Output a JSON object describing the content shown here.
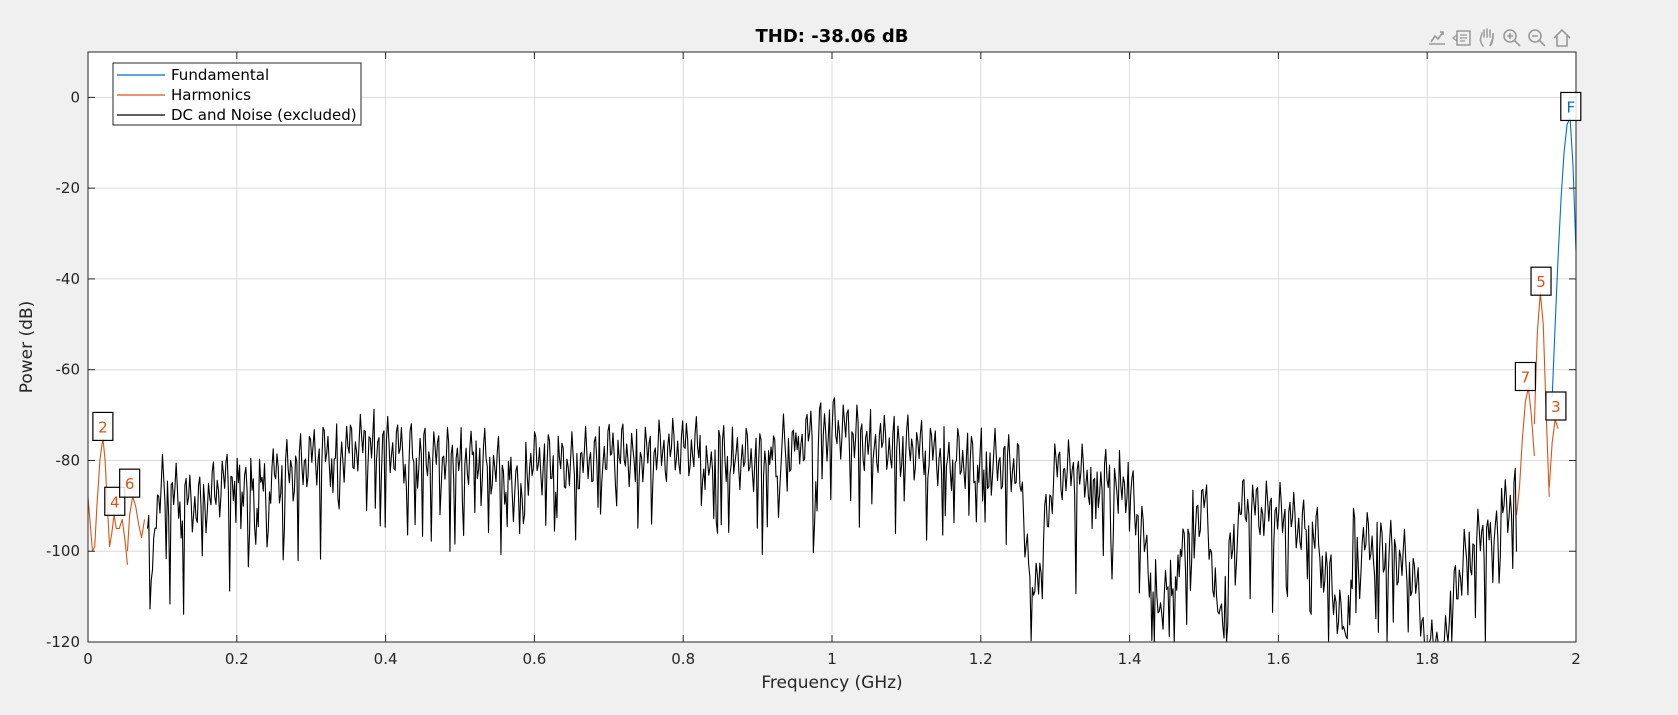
{
  "toolbar": {
    "icons": [
      "export-icon",
      "data-tips-icon",
      "pan-icon",
      "zoom-in-icon",
      "zoom-out-icon",
      "home-icon"
    ]
  },
  "chart_data": {
    "type": "line",
    "title": "THD: -38.06 dB",
    "xlabel": "Frequency (GHz)",
    "ylabel": "Power (dB)",
    "xlim": [
      0,
      2
    ],
    "ylim": [
      -120,
      10
    ],
    "xticks": [
      0,
      0.2,
      0.4,
      0.6,
      0.8,
      1,
      1.2,
      1.4,
      1.6,
      1.8,
      2
    ],
    "xtick_labels": [
      "0",
      "0.2",
      "0.4",
      "0.6",
      "0.8",
      "1",
      "1.2",
      "1.4",
      "1.6",
      "1.8",
      "2"
    ],
    "yticks": [
      -120,
      -100,
      -80,
      -60,
      -40,
      -20,
      0
    ],
    "ytick_labels": [
      "-120",
      "-100",
      "-80",
      "-60",
      "-40",
      "-20",
      "0"
    ],
    "grid": true,
    "legend_position": "top-left",
    "colors": {
      "fundamental": "#0072BD",
      "harmonics": "#D95319",
      "noise": "#000000"
    },
    "series": [
      {
        "name": "Fundamental",
        "color": "#0072BD",
        "x": [
          1.968,
          1.972,
          1.976,
          1.98,
          1.984,
          1.988,
          1.992,
          1.996,
          2.0
        ],
        "y": [
          -66,
          -50,
          -35,
          -22,
          -12,
          -6,
          -4.5,
          -15,
          -34
        ]
      },
      {
        "name": "Harmonics",
        "color": "#D95319",
        "segments": [
          {
            "x": [
              0.0,
              0.003,
              0.006,
              0.009,
              0.012,
              0.016,
              0.02,
              0.023,
              0.026,
              0.029,
              0.032,
              0.035
            ],
            "y": [
              -88,
              -94,
              -100,
              -99,
              -90,
              -80,
              -75,
              -80,
              -90,
              -99,
              -96,
              -92
            ]
          },
          {
            "x": [
              0.035,
              0.038,
              0.042,
              0.046,
              0.05,
              0.053
            ],
            "y": [
              -92,
              -95,
              -95,
              -93,
              -98,
              -103
            ]
          },
          {
            "x": [
              0.053,
              0.056,
              0.06,
              0.064,
              0.068,
              0.072,
              0.076
            ],
            "y": [
              -100,
              -92,
              -88,
              -90,
              -94,
              -97,
              -93
            ]
          },
          {
            "x": [
              1.92,
              1.924,
              1.928,
              1.932,
              1.936,
              1.94,
              1.944
            ],
            "y": [
              -92,
              -86,
              -75,
              -67,
              -64,
              -70,
              -79
            ]
          },
          {
            "x": [
              1.944,
              1.948,
              1.952,
              1.956,
              1.96,
              1.964
            ],
            "y": [
              -72,
              -52,
              -43,
              -50,
              -70,
              -88
            ]
          },
          {
            "x": [
              1.964,
              1.968,
              1.972,
              1.976
            ],
            "y": [
              -86,
              -76,
              -71,
              -73
            ]
          }
        ]
      },
      {
        "name": "DC and Noise (excluded)",
        "color": "#000000",
        "x": [
          0.08,
          0.086,
          0.09,
          0.1,
          0.12,
          0.15,
          0.18,
          0.2,
          0.24,
          0.28,
          0.3,
          0.34,
          0.38,
          0.4,
          0.45,
          0.5,
          0.52,
          0.56,
          0.6,
          0.65,
          0.7,
          0.75,
          0.8,
          0.85,
          0.9,
          0.95,
          0.98,
          1.0,
          1.05,
          1.1,
          1.15,
          1.2,
          1.25,
          1.27,
          1.3,
          1.35,
          1.4,
          1.44,
          1.5,
          1.52,
          1.55,
          1.6,
          1.65,
          1.69,
          1.7,
          1.75,
          1.78,
          1.8,
          1.82,
          1.85,
          1.88,
          1.9,
          1.92
        ],
        "y": [
          -95,
          -107,
          -90,
          -86,
          -88,
          -90,
          -85,
          -83,
          -84,
          -82,
          -79,
          -78,
          -76,
          -77,
          -79,
          -80,
          -78,
          -83,
          -80,
          -81,
          -78,
          -79,
          -77,
          -78,
          -80,
          -76,
          -74,
          -72,
          -76,
          -77,
          -79,
          -80,
          -81,
          -109,
          -82,
          -84,
          -85,
          -112,
          -88,
          -114,
          -90,
          -92,
          -96,
          -118,
          -97,
          -100,
          -104,
          -120,
          -120,
          -101,
          -96,
          -91,
          -88
        ]
      }
    ],
    "annotations": [
      {
        "label": "F",
        "x": 1.993,
        "y": -2,
        "color": "#0072BD"
      },
      {
        "label": "2",
        "x": 0.02,
        "y": -72.5,
        "color": "#D95319"
      },
      {
        "label": "3",
        "x": 1.973,
        "y": -68,
        "color": "#D95319"
      },
      {
        "label": "4",
        "x": 0.036,
        "y": -89,
        "color": "#D95319"
      },
      {
        "label": "5",
        "x": 1.953,
        "y": -40.5,
        "color": "#D95319"
      },
      {
        "label": "6",
        "x": 0.056,
        "y": -85,
        "color": "#D95319"
      },
      {
        "label": "7",
        "x": 1.932,
        "y": -61.5,
        "color": "#D95319"
      }
    ]
  }
}
